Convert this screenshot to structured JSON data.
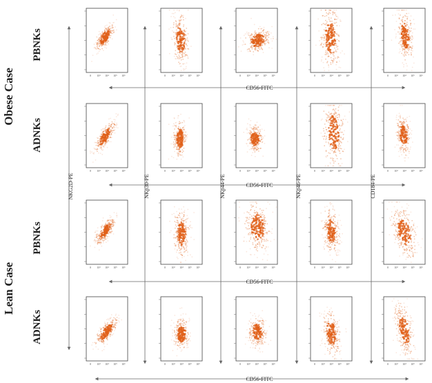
{
  "figure": {
    "case_labels": [
      "Obese Case",
      "Lean Case"
    ],
    "row_labels": [
      "PBNKs",
      "ADNKs",
      "PBNKs",
      "ADNKs"
    ],
    "x_axis_label": "CD56-FITC",
    "y_axis_labels": [
      "NKG2D-PE",
      "NKp30-PE",
      "NKp44-PE",
      "NKp46-PE",
      "CD184-PE"
    ],
    "x_tick_labels": [
      "0",
      "10³",
      "10⁴",
      "10⁵",
      "10⁶"
    ],
    "dot_color": "#e0601a"
  },
  "chart_data": {
    "type": "scatter",
    "xlabel": "CD56-FITC",
    "panels": [
      [
        {
          "cx": 0.45,
          "cy": 0.45,
          "sx": 0.14,
          "sy": 0.06,
          "rot": -42,
          "n": 260
        },
        {
          "cx": 0.48,
          "cy": 0.48,
          "sx": 0.1,
          "sy": 0.2,
          "rot": -5,
          "n": 260
        },
        {
          "cx": 0.52,
          "cy": 0.5,
          "sx": 0.16,
          "sy": 0.09,
          "rot": -10,
          "n": 260
        },
        {
          "cx": 0.48,
          "cy": 0.45,
          "sx": 0.12,
          "sy": 0.24,
          "rot": -5,
          "n": 280
        },
        {
          "cx": 0.52,
          "cy": 0.42,
          "sx": 0.09,
          "sy": 0.2,
          "rot": -8,
          "n": 260
        }
      ],
      [
        {
          "cx": 0.45,
          "cy": 0.52,
          "sx": 0.16,
          "sy": 0.06,
          "rot": -45,
          "n": 260
        },
        {
          "cx": 0.46,
          "cy": 0.55,
          "sx": 0.08,
          "sy": 0.15,
          "rot": 0,
          "n": 240
        },
        {
          "cx": 0.46,
          "cy": 0.55,
          "sx": 0.09,
          "sy": 0.11,
          "rot": -10,
          "n": 230
        },
        {
          "cx": 0.55,
          "cy": 0.45,
          "sx": 0.13,
          "sy": 0.26,
          "rot": -8,
          "n": 290
        },
        {
          "cx": 0.48,
          "cy": 0.5,
          "sx": 0.08,
          "sy": 0.16,
          "rot": -10,
          "n": 240
        }
      ],
      [
        {
          "cx": 0.46,
          "cy": 0.48,
          "sx": 0.15,
          "sy": 0.06,
          "rot": -40,
          "n": 260
        },
        {
          "cx": 0.5,
          "cy": 0.52,
          "sx": 0.1,
          "sy": 0.18,
          "rot": -3,
          "n": 260
        },
        {
          "cx": 0.52,
          "cy": 0.42,
          "sx": 0.15,
          "sy": 0.2,
          "rot": -12,
          "n": 300
        },
        {
          "cx": 0.5,
          "cy": 0.48,
          "sx": 0.1,
          "sy": 0.18,
          "rot": -10,
          "n": 250
        },
        {
          "cx": 0.5,
          "cy": 0.5,
          "sx": 0.13,
          "sy": 0.22,
          "rot": -30,
          "n": 280
        }
      ],
      [
        {
          "cx": 0.48,
          "cy": 0.55,
          "sx": 0.17,
          "sy": 0.06,
          "rot": -38,
          "n": 260
        },
        {
          "cx": 0.5,
          "cy": 0.58,
          "sx": 0.1,
          "sy": 0.12,
          "rot": 0,
          "n": 240
        },
        {
          "cx": 0.52,
          "cy": 0.55,
          "sx": 0.11,
          "sy": 0.12,
          "rot": -15,
          "n": 250
        },
        {
          "cx": 0.5,
          "cy": 0.56,
          "sx": 0.1,
          "sy": 0.18,
          "rot": -12,
          "n": 250
        },
        {
          "cx": 0.5,
          "cy": 0.52,
          "sx": 0.1,
          "sy": 0.22,
          "rot": -20,
          "n": 260
        }
      ]
    ]
  }
}
